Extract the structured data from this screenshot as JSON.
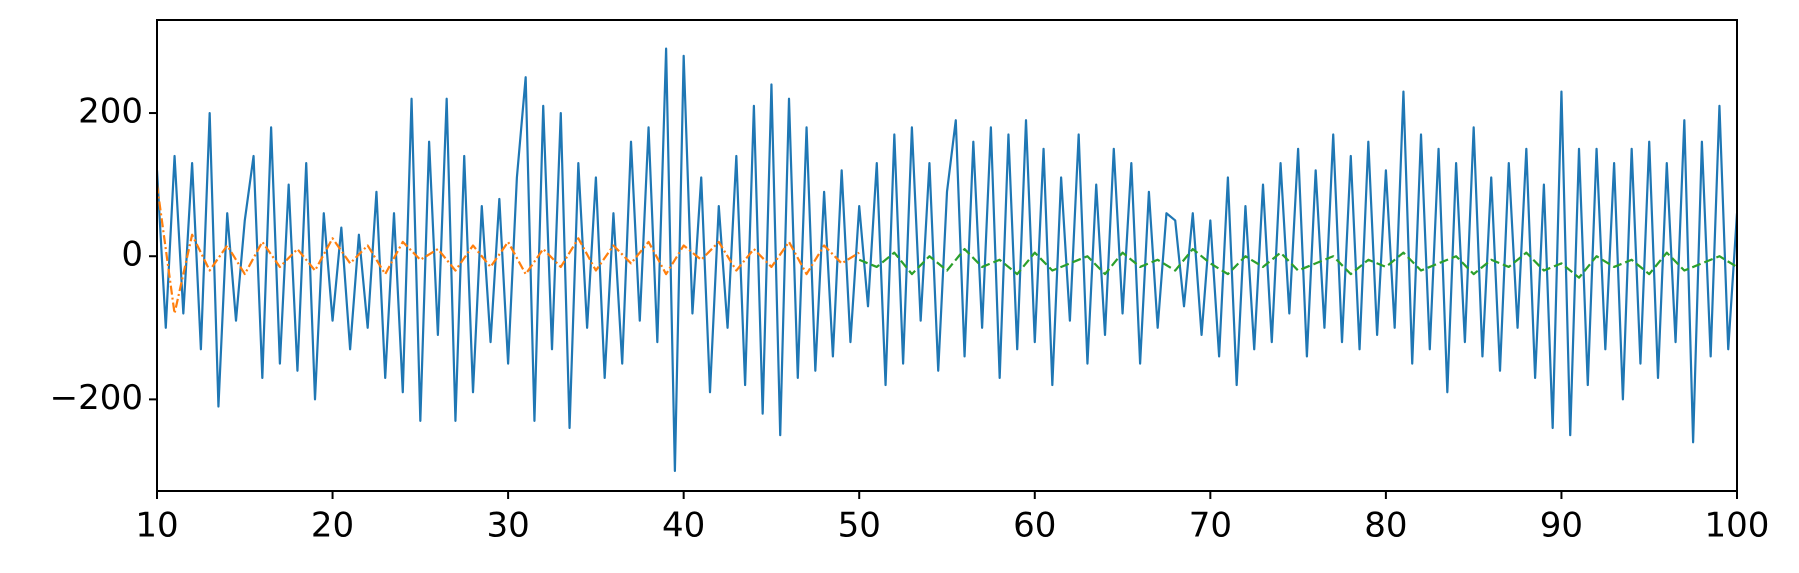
{
  "chart_data": {
    "type": "line",
    "xlim": [
      10,
      100
    ],
    "xticks": [
      10,
      20,
      30,
      40,
      50,
      60,
      70,
      80,
      90,
      100
    ],
    "ylim": [
      -328,
      330
    ],
    "yticks": [
      {
        "value": -200,
        "label": "−200"
      },
      0,
      200
    ],
    "grid": false,
    "series": [
      {
        "color": "#1f77b4",
        "dash": "solid",
        "x": [
          10,
          10.5,
          11,
          11.5,
          12,
          12.5,
          13,
          13.5,
          14,
          14.5,
          15,
          15.5,
          16,
          16.5,
          17,
          17.5,
          18,
          18.5,
          19,
          19.5,
          20,
          20.5,
          21,
          21.5,
          22,
          22.5,
          23,
          23.5,
          24,
          24.5,
          25,
          25.5,
          26,
          26.5,
          27,
          27.5,
          28,
          28.5,
          29,
          29.5,
          30,
          30.5,
          31,
          31.5,
          32,
          32.5,
          33,
          33.5,
          34,
          34.5,
          35,
          35.5,
          36,
          36.5,
          37,
          37.5,
          38,
          38.5,
          39,
          39.5,
          40,
          40.5,
          41,
          41.5,
          42,
          42.5,
          43,
          43.5,
          44,
          44.5,
          45,
          45.5,
          46,
          46.5,
          47,
          47.5,
          48,
          48.5,
          49,
          49.5,
          50,
          50.5,
          51,
          51.5,
          52,
          52.5,
          53,
          53.5,
          54,
          54.5,
          55,
          55.5,
          56,
          56.5,
          57,
          57.5,
          58,
          58.5,
          59,
          59.5,
          60,
          60.5,
          61,
          61.5,
          62,
          62.5,
          63,
          63.5,
          64,
          64.5,
          65,
          65.5,
          66,
          66.5,
          67,
          67.5,
          68,
          68.5,
          69,
          69.5,
          70,
          70.5,
          71,
          71.5,
          72,
          72.5,
          73,
          73.5,
          74,
          74.5,
          75,
          75.5,
          76,
          76.5,
          77,
          77.5,
          78,
          78.5,
          79,
          79.5,
          80,
          80.5,
          81,
          81.5,
          82,
          82.5,
          83,
          83.5,
          84,
          84.5,
          85,
          85.5,
          86,
          86.5,
          87,
          87.5,
          88,
          88.5,
          89,
          89.5,
          90,
          90.5,
          91,
          91.5,
          92,
          92.5,
          93,
          93.5,
          94,
          94.5,
          95,
          95.5,
          96,
          96.5,
          97,
          97.5,
          98,
          98.5,
          99,
          99.5,
          100
        ],
        "values": [
          120,
          -100,
          140,
          -80,
          130,
          -130,
          200,
          -210,
          60,
          -90,
          50,
          140,
          -170,
          180,
          -150,
          100,
          -160,
          130,
          -200,
          60,
          -90,
          40,
          -130,
          30,
          -100,
          90,
          -170,
          60,
          -190,
          220,
          -230,
          160,
          -110,
          220,
          -230,
          140,
          -190,
          70,
          -120,
          80,
          -150,
          110,
          250,
          -230,
          210,
          -130,
          200,
          -240,
          130,
          -100,
          110,
          -170,
          60,
          -150,
          160,
          -90,
          180,
          -120,
          290,
          -300,
          280,
          -80,
          110,
          -190,
          70,
          -100,
          140,
          -180,
          210,
          -220,
          240,
          -250,
          220,
          -170,
          180,
          -160,
          90,
          -140,
          120,
          -120,
          70,
          -70,
          130,
          -180,
          170,
          -150,
          180,
          -90,
          130,
          -160,
          90,
          190,
          -140,
          160,
          -100,
          180,
          -170,
          170,
          -130,
          190,
          -120,
          150,
          -180,
          110,
          -90,
          170,
          -150,
          100,
          -110,
          150,
          -80,
          130,
          -150,
          90,
          -100,
          60,
          50,
          -70,
          60,
          -110,
          50,
          -140,
          110,
          -180,
          70,
          -130,
          100,
          -120,
          130,
          -80,
          150,
          -140,
          120,
          -100,
          170,
          -120,
          140,
          -130,
          160,
          -110,
          120,
          -100,
          230,
          -150,
          170,
          -130,
          150,
          -190,
          130,
          -120,
          180,
          -140,
          110,
          -160,
          130,
          -100,
          150,
          -170,
          100,
          -240,
          230,
          -250,
          150,
          -180,
          150,
          -130,
          130,
          -200,
          150,
          -150,
          160,
          -170,
          130,
          -120,
          190,
          -260,
          160,
          -140,
          210,
          -130,
          60
        ]
      },
      {
        "color": "#ff7f0e",
        "dash": "dashdot",
        "x": [
          10,
          11,
          12,
          13,
          14,
          15,
          16,
          17,
          18,
          19,
          20,
          21,
          22,
          23,
          24,
          25,
          26,
          27,
          28,
          29,
          30,
          31,
          32,
          33,
          34,
          35,
          36,
          37,
          38,
          39,
          40,
          41,
          42,
          43,
          44,
          45,
          46,
          47,
          48,
          49,
          50
        ],
        "values": [
          100,
          -80,
          30,
          -20,
          15,
          -25,
          20,
          -15,
          10,
          -20,
          25,
          -10,
          15,
          -25,
          20,
          -5,
          10,
          -20,
          15,
          -15,
          20,
          -25,
          10,
          -15,
          25,
          -20,
          15,
          -10,
          20,
          -25,
          15,
          -5,
          20,
          -20,
          10,
          -15,
          20,
          -25,
          15,
          -10,
          5
        ]
      },
      {
        "color": "#2ca02c",
        "dash": "dashed",
        "x": [
          50,
          51,
          52,
          53,
          54,
          55,
          56,
          57,
          58,
          59,
          60,
          61,
          62,
          63,
          64,
          65,
          66,
          67,
          68,
          69,
          70,
          71,
          72,
          73,
          74,
          75,
          76,
          77,
          78,
          79,
          80,
          81,
          82,
          83,
          84,
          85,
          86,
          87,
          88,
          89,
          90,
          91,
          92,
          93,
          94,
          95,
          96,
          97,
          98,
          99,
          100
        ],
        "values": [
          -5,
          -15,
          5,
          -25,
          0,
          -20,
          10,
          -15,
          -5,
          -25,
          5,
          -20,
          -10,
          0,
          -25,
          5,
          -15,
          -5,
          -20,
          10,
          -10,
          -25,
          0,
          -15,
          5,
          -20,
          -10,
          0,
          -25,
          -5,
          -15,
          5,
          -20,
          -10,
          0,
          -25,
          -5,
          -15,
          5,
          -20,
          -10,
          -30,
          0,
          -15,
          -5,
          -25,
          5,
          -20,
          -10,
          0,
          -15
        ]
      }
    ]
  }
}
